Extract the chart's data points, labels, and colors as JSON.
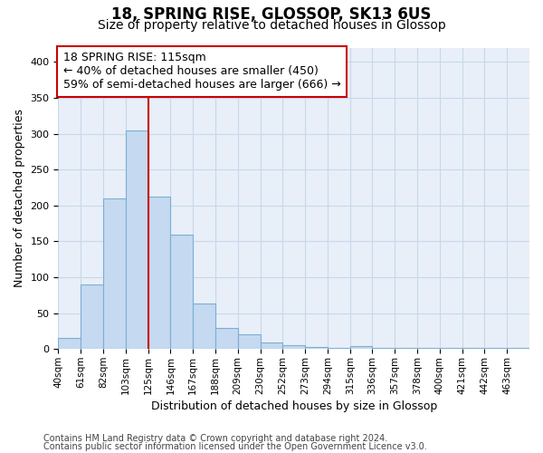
{
  "title1": "18, SPRING RISE, GLOSSOP, SK13 6US",
  "title2": "Size of property relative to detached houses in Glossop",
  "xlabel": "Distribution of detached houses by size in Glossop",
  "ylabel": "Number of detached properties",
  "footnote1": "Contains HM Land Registry data © Crown copyright and database right 2024.",
  "footnote2": "Contains public sector information licensed under the Open Government Licence v3.0.",
  "bar_values": [
    15,
    90,
    210,
    305,
    212,
    160,
    63,
    30,
    20,
    9,
    6,
    3,
    1,
    4,
    1,
    1,
    1,
    1,
    1,
    1,
    2
  ],
  "bar_labels": [
    "40sqm",
    "61sqm",
    "82sqm",
    "103sqm",
    "125sqm",
    "146sqm",
    "167sqm",
    "188sqm",
    "209sqm",
    "230sqm",
    "252sqm",
    "273sqm",
    "294sqm",
    "315sqm",
    "336sqm",
    "357sqm",
    "378sqm",
    "400sqm",
    "421sqm",
    "442sqm",
    "463sqm"
  ],
  "bar_color": "#c5d9f0",
  "bar_edge_color": "#7bafd4",
  "vline_x": 4,
  "vline_color": "#cc0000",
  "annotation_line1": "18 SPRING RISE: 115sqm",
  "annotation_line2": "← 40% of detached houses are smaller (450)",
  "annotation_line3": "59% of semi-detached houses are larger (666) →",
  "annotation_box_facecolor": "#ffffff",
  "annotation_box_edgecolor": "#cc0000",
  "ylim": [
    0,
    420
  ],
  "yticks": [
    0,
    50,
    100,
    150,
    200,
    250,
    300,
    350,
    400
  ],
  "grid_color": "#c8d8ea",
  "plot_bg_color": "#e8eff8",
  "title1_fontsize": 12,
  "title2_fontsize": 10,
  "axis_label_fontsize": 9,
  "tick_fontsize": 8,
  "xtick_fontsize": 7.5,
  "annotation_fontsize": 9,
  "footnote_fontsize": 7
}
